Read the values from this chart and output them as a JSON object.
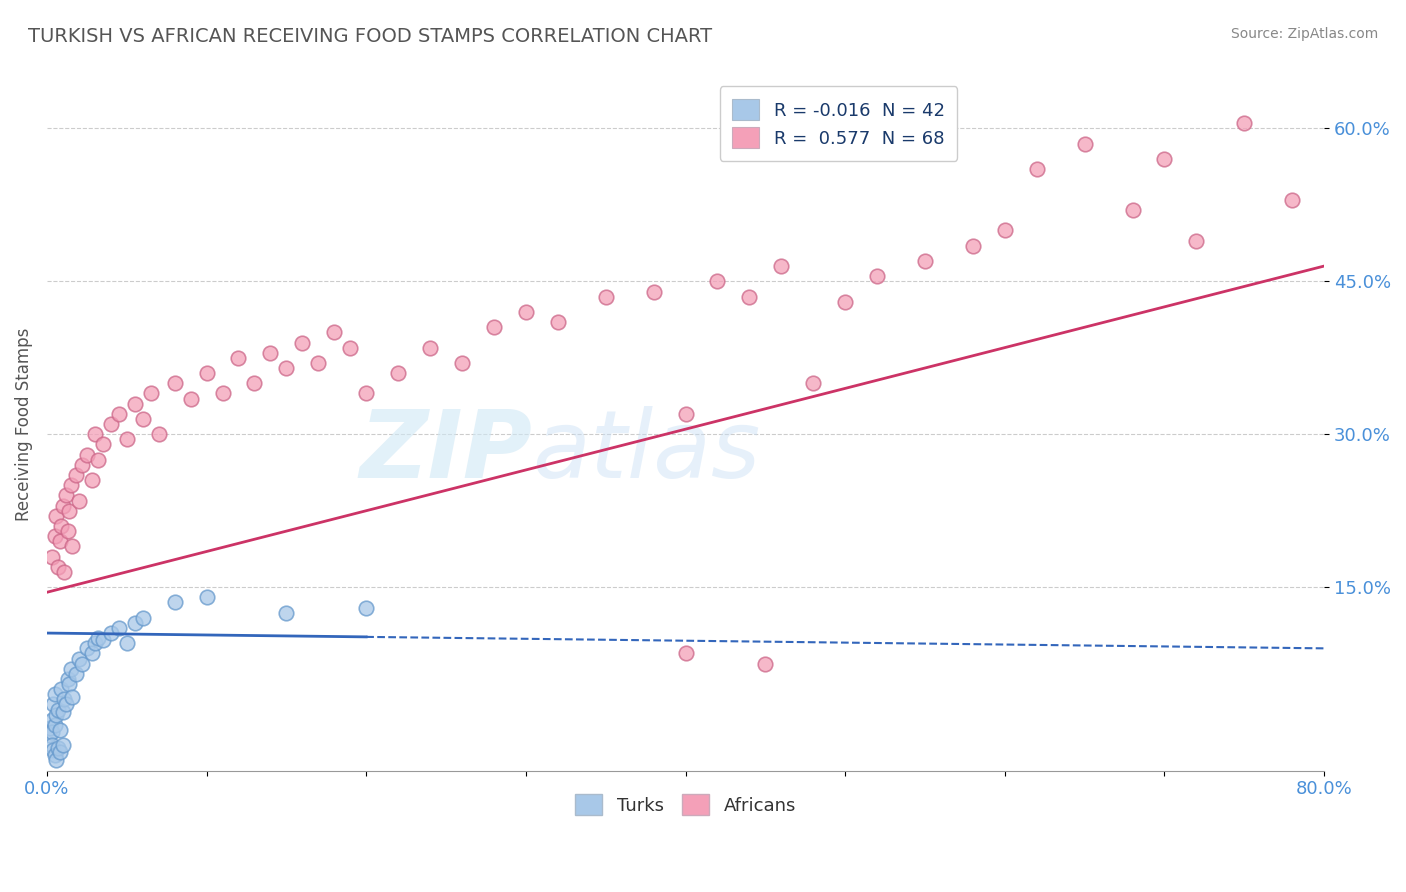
{
  "title": "TURKISH VS AFRICAN RECEIVING FOOD STAMPS CORRELATION CHART",
  "source": "Source: ZipAtlas.com",
  "ylabel": "Receiving Food Stamps",
  "xlim": [
    0.0,
    80.0
  ],
  "ylim": [
    -3.0,
    65.0
  ],
  "yticks": [
    15.0,
    30.0,
    45.0,
    60.0
  ],
  "turks_R": -0.016,
  "turks_N": 42,
  "africans_R": 0.577,
  "africans_N": 68,
  "turks_color": "#a8c8e8",
  "africans_color": "#f4a0b8",
  "turks_edge_color": "#6699cc",
  "africans_edge_color": "#cc6688",
  "turks_line_color": "#3366bb",
  "africans_line_color": "#cc3366",
  "legend_color": "#1a3a6b",
  "watermark_zip": "ZIP",
  "watermark_atlas": "atlas",
  "turks_scatter": [
    [
      0.15,
      0.5
    ],
    [
      0.2,
      1.2
    ],
    [
      0.3,
      2.0
    ],
    [
      0.35,
      0.8
    ],
    [
      0.4,
      3.5
    ],
    [
      0.5,
      1.5
    ],
    [
      0.5,
      4.5
    ],
    [
      0.6,
      2.5
    ],
    [
      0.7,
      3.0
    ],
    [
      0.8,
      1.0
    ],
    [
      0.9,
      5.0
    ],
    [
      1.0,
      2.8
    ],
    [
      1.1,
      4.0
    ],
    [
      1.2,
      3.5
    ],
    [
      1.3,
      6.0
    ],
    [
      1.4,
      5.5
    ],
    [
      1.5,
      7.0
    ],
    [
      1.6,
      4.2
    ],
    [
      1.8,
      6.5
    ],
    [
      2.0,
      8.0
    ],
    [
      2.2,
      7.5
    ],
    [
      2.5,
      9.0
    ],
    [
      2.8,
      8.5
    ],
    [
      3.0,
      9.5
    ],
    [
      3.2,
      10.0
    ],
    [
      3.5,
      9.8
    ],
    [
      4.0,
      10.5
    ],
    [
      4.5,
      11.0
    ],
    [
      5.0,
      9.5
    ],
    [
      5.5,
      11.5
    ],
    [
      0.3,
      -0.5
    ],
    [
      0.4,
      -1.0
    ],
    [
      0.5,
      -1.5
    ],
    [
      0.6,
      -2.0
    ],
    [
      0.7,
      -0.8
    ],
    [
      0.8,
      -1.2
    ],
    [
      1.0,
      -0.5
    ],
    [
      6.0,
      12.0
    ],
    [
      8.0,
      13.5
    ],
    [
      10.0,
      14.0
    ],
    [
      15.0,
      12.5
    ],
    [
      20.0,
      13.0
    ]
  ],
  "africans_scatter": [
    [
      0.3,
      18.0
    ],
    [
      0.5,
      20.0
    ],
    [
      0.6,
      22.0
    ],
    [
      0.7,
      17.0
    ],
    [
      0.8,
      19.5
    ],
    [
      0.9,
      21.0
    ],
    [
      1.0,
      23.0
    ],
    [
      1.1,
      16.5
    ],
    [
      1.2,
      24.0
    ],
    [
      1.3,
      20.5
    ],
    [
      1.4,
      22.5
    ],
    [
      1.5,
      25.0
    ],
    [
      1.6,
      19.0
    ],
    [
      1.8,
      26.0
    ],
    [
      2.0,
      23.5
    ],
    [
      2.2,
      27.0
    ],
    [
      2.5,
      28.0
    ],
    [
      2.8,
      25.5
    ],
    [
      3.0,
      30.0
    ],
    [
      3.2,
      27.5
    ],
    [
      3.5,
      29.0
    ],
    [
      4.0,
      31.0
    ],
    [
      4.5,
      32.0
    ],
    [
      5.0,
      29.5
    ],
    [
      5.5,
      33.0
    ],
    [
      6.0,
      31.5
    ],
    [
      6.5,
      34.0
    ],
    [
      7.0,
      30.0
    ],
    [
      8.0,
      35.0
    ],
    [
      9.0,
      33.5
    ],
    [
      10.0,
      36.0
    ],
    [
      11.0,
      34.0
    ],
    [
      12.0,
      37.5
    ],
    [
      13.0,
      35.0
    ],
    [
      14.0,
      38.0
    ],
    [
      15.0,
      36.5
    ],
    [
      16.0,
      39.0
    ],
    [
      17.0,
      37.0
    ],
    [
      18.0,
      40.0
    ],
    [
      19.0,
      38.5
    ],
    [
      20.0,
      34.0
    ],
    [
      22.0,
      36.0
    ],
    [
      24.0,
      38.5
    ],
    [
      26.0,
      37.0
    ],
    [
      28.0,
      40.5
    ],
    [
      30.0,
      42.0
    ],
    [
      32.0,
      41.0
    ],
    [
      35.0,
      43.5
    ],
    [
      38.0,
      44.0
    ],
    [
      40.0,
      32.0
    ],
    [
      42.0,
      45.0
    ],
    [
      44.0,
      43.5
    ],
    [
      46.0,
      46.5
    ],
    [
      48.0,
      35.0
    ],
    [
      50.0,
      43.0
    ],
    [
      52.0,
      45.5
    ],
    [
      55.0,
      47.0
    ],
    [
      58.0,
      48.5
    ],
    [
      60.0,
      50.0
    ],
    [
      62.0,
      56.0
    ],
    [
      65.0,
      58.5
    ],
    [
      68.0,
      52.0
    ],
    [
      70.0,
      57.0
    ],
    [
      72.0,
      49.0
    ],
    [
      75.0,
      60.5
    ],
    [
      78.0,
      53.0
    ],
    [
      40.0,
      8.5
    ],
    [
      45.0,
      7.5
    ]
  ],
  "turks_line_x0": 0.0,
  "turks_line_y0": 10.5,
  "turks_line_x1": 80.0,
  "turks_line_y1": 9.0,
  "turks_solid_x1": 20.0,
  "africans_line_x0": 0.0,
  "africans_line_y0": 14.5,
  "africans_line_x1": 80.0,
  "africans_line_y1": 46.5
}
